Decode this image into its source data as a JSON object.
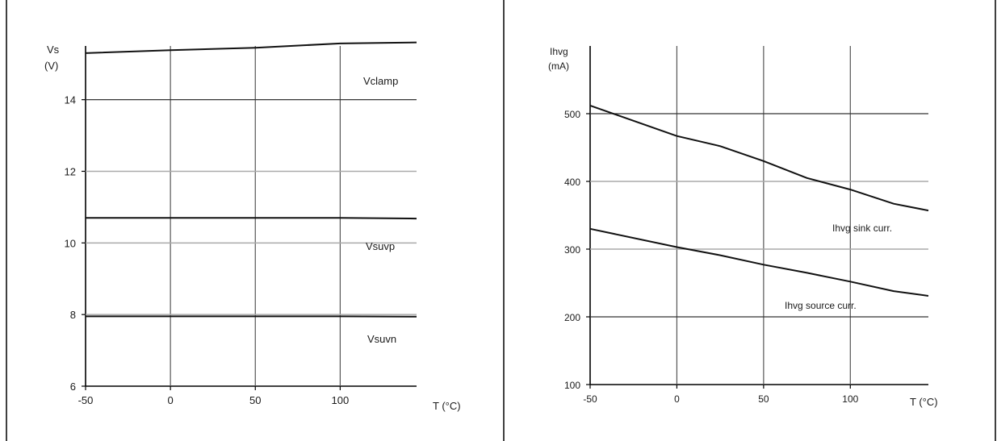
{
  "chart_data": [
    {
      "type": "line",
      "ylabel": "Vs",
      "yunit": "(V)",
      "xlabel": "T (°C)",
      "xlim": [
        -50,
        145
      ],
      "ylim": [
        6,
        15.5
      ],
      "xticks": [
        -50,
        0,
        50,
        100
      ],
      "yticks": [
        6,
        8,
        10,
        12,
        14
      ],
      "grid": true,
      "series": [
        {
          "name": "Vclamp",
          "x": [
            -50,
            0,
            50,
            100,
            145
          ],
          "values": [
            15.3,
            15.38,
            15.45,
            15.57,
            15.6
          ]
        },
        {
          "name": "Vsuvp",
          "x": [
            -50,
            0,
            50,
            100,
            145
          ],
          "values": [
            10.7,
            10.7,
            10.7,
            10.7,
            10.68
          ]
        },
        {
          "name": "Vsuvn",
          "x": [
            -50,
            0,
            50,
            100,
            145
          ],
          "values": [
            7.95,
            7.95,
            7.95,
            7.95,
            7.94
          ]
        }
      ]
    },
    {
      "type": "line",
      "ylabel": "Ihvg",
      "yunit": "(mA)",
      "xlabel": "T (°C)",
      "xlim": [
        -50,
        145
      ],
      "ylim": [
        100,
        600
      ],
      "xticks": [
        -50,
        0,
        50,
        100
      ],
      "yticks": [
        100,
        200,
        300,
        400,
        500
      ],
      "grid": true,
      "series": [
        {
          "name": "Ihvg sink curr.",
          "x": [
            -50,
            0,
            25,
            50,
            75,
            100,
            125,
            145
          ],
          "values": [
            512,
            467,
            452,
            430,
            405,
            388,
            367,
            357
          ]
        },
        {
          "name": "Ihvg source curr.",
          "x": [
            -50,
            0,
            25,
            50,
            75,
            100,
            125,
            145
          ],
          "values": [
            330,
            303,
            291,
            277,
            265,
            252,
            238,
            231
          ]
        }
      ]
    }
  ]
}
